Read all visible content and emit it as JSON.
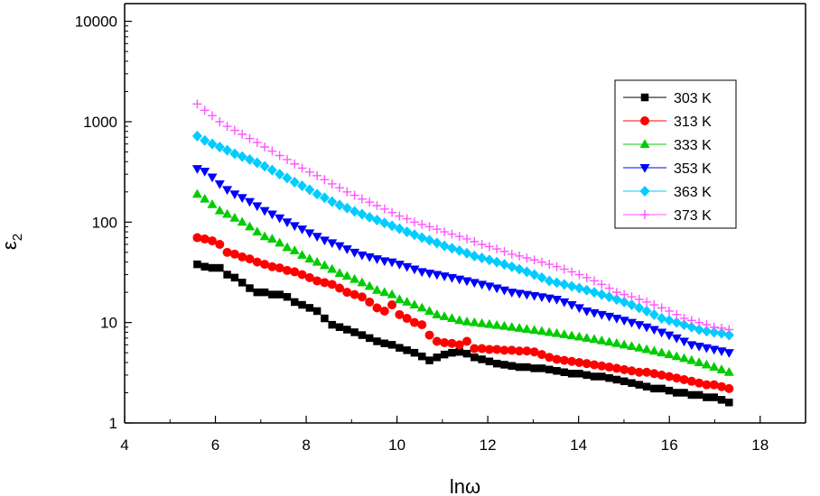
{
  "chart_data": {
    "type": "scatter",
    "title": "",
    "xlabel": "lnω",
    "ylabel": "ε2",
    "ylabel_main": "ε",
    "ylabel_sub": "2",
    "xlim": [
      4,
      19
    ],
    "ylim": [
      1,
      15000
    ],
    "yscale": "log",
    "grid": false,
    "legend_position": "top-right",
    "x_ticks": [
      4,
      6,
      8,
      10,
      12,
      14,
      16,
      18
    ],
    "x_tick_labels": [
      "4",
      "6",
      "8",
      "10",
      "12",
      "14",
      "16",
      "18"
    ],
    "y_ticks": [
      1,
      10,
      100,
      1000,
      10000
    ],
    "y_tick_labels": [
      "1",
      "10",
      "100",
      "1000",
      "10000"
    ],
    "x_start": 5.6,
    "x_step": 0.165,
    "series": [
      {
        "name": "303 K",
        "color": "#000000",
        "marker": "square",
        "values": [
          38,
          36,
          35,
          35,
          30,
          28,
          25,
          22,
          20,
          20,
          19,
          19,
          18,
          16,
          15,
          14,
          13,
          11,
          9.5,
          9,
          8.5,
          8,
          7.5,
          7,
          6.5,
          6.2,
          6,
          5.6,
          5.3,
          5,
          4.6,
          4.2,
          4.5,
          4.8,
          5,
          5.1,
          4.9,
          4.5,
          4.3,
          4.1,
          3.9,
          3.8,
          3.7,
          3.6,
          3.6,
          3.5,
          3.5,
          3.4,
          3.3,
          3.2,
          3.1,
          3.1,
          3,
          2.9,
          2.9,
          2.8,
          2.7,
          2.6,
          2.5,
          2.4,
          2.3,
          2.2,
          2.2,
          2.1,
          2,
          2,
          1.9,
          1.9,
          1.8,
          1.8,
          1.7,
          1.6
        ]
      },
      {
        "name": "313 K",
        "color": "#ff0000",
        "marker": "circle",
        "values": [
          70,
          68,
          65,
          60,
          50,
          48,
          45,
          43,
          40,
          38,
          36,
          35,
          33,
          32,
          30,
          28,
          26,
          25,
          24,
          22,
          20,
          19,
          18,
          16,
          14,
          13,
          15,
          12,
          11,
          10,
          9.5,
          7.5,
          6.5,
          6.3,
          6.2,
          6,
          6.5,
          5.5,
          5.5,
          5.4,
          5.4,
          5.3,
          5.3,
          5.2,
          5.2,
          5.1,
          4.8,
          4.5,
          4.3,
          4.2,
          4.1,
          4,
          3.9,
          3.8,
          3.7,
          3.6,
          3.5,
          3.4,
          3.3,
          3.2,
          3.2,
          3.1,
          3,
          2.9,
          2.8,
          2.7,
          2.6,
          2.5,
          2.4,
          2.4,
          2.3,
          2.2
        ]
      },
      {
        "name": "333 K",
        "color": "#00cc00",
        "marker": "triangle-up",
        "values": [
          190,
          170,
          150,
          130,
          120,
          110,
          100,
          90,
          80,
          72,
          68,
          62,
          56,
          52,
          47,
          43,
          40,
          37,
          34,
          31,
          29,
          27,
          25,
          23,
          21,
          20,
          19,
          17,
          16,
          15,
          14,
          13,
          12,
          11.5,
          11,
          10.5,
          10.2,
          10,
          9.8,
          9.6,
          9.4,
          9.2,
          9,
          8.8,
          8.6,
          8.4,
          8.2,
          8,
          7.8,
          7.6,
          7.4,
          7.2,
          7,
          6.8,
          6.6,
          6.4,
          6.2,
          6,
          5.8,
          5.6,
          5.4,
          5.2,
          5,
          4.8,
          4.6,
          4.4,
          4.2,
          4,
          3.8,
          3.6,
          3.4,
          3.2
        ]
      },
      {
        "name": "353 K",
        "color": "#0000ff",
        "marker": "triangle-down",
        "values": [
          340,
          320,
          280,
          240,
          210,
          190,
          175,
          160,
          145,
          130,
          120,
          110,
          100,
          92,
          85,
          78,
          72,
          66,
          62,
          58,
          54,
          50,
          47,
          45,
          43,
          41,
          40,
          38,
          36,
          34,
          32,
          31,
          30,
          29,
          28,
          27,
          26,
          25,
          24,
          23,
          22,
          21,
          20,
          19.5,
          19,
          18.5,
          18,
          17.5,
          17,
          16,
          15,
          14,
          13,
          12.5,
          12,
          11.5,
          11,
          10.5,
          10,
          9.5,
          9,
          8.5,
          8,
          7.5,
          7,
          6.5,
          6,
          5.8,
          5.6,
          5.4,
          5.2,
          5
        ]
      },
      {
        "name": "363 K",
        "color": "#00ccff",
        "marker": "diamond",
        "values": [
          720,
          650,
          600,
          560,
          520,
          480,
          450,
          420,
          390,
          360,
          330,
          300,
          275,
          250,
          230,
          210,
          190,
          175,
          160,
          148,
          138,
          128,
          120,
          112,
          105,
          98,
          92,
          86,
          80,
          75,
          70,
          66,
          62,
          58,
          55,
          52,
          49,
          46,
          44,
          42,
          40,
          38,
          36,
          34,
          32,
          30,
          28,
          26,
          25,
          24,
          23,
          22,
          21,
          20,
          19,
          18,
          17,
          16,
          15,
          14,
          13,
          12,
          11,
          10.5,
          10,
          9.5,
          9,
          8.5,
          8.2,
          8,
          7.8,
          7.5
        ]
      },
      {
        "name": "373 K",
        "color": "#ff55ff",
        "marker": "plus",
        "values": [
          1500,
          1300,
          1150,
          1000,
          900,
          820,
          750,
          680,
          620,
          560,
          510,
          460,
          420,
          380,
          345,
          315,
          290,
          265,
          240,
          220,
          200,
          185,
          170,
          158,
          146,
          135,
          125,
          115,
          108,
          100,
          95,
          90,
          85,
          80,
          76,
          72,
          68,
          64,
          60,
          57,
          54,
          51,
          48,
          46,
          44,
          42,
          40,
          38,
          36,
          34,
          32,
          30,
          28,
          26,
          24,
          22,
          20,
          19,
          18,
          17,
          16,
          15,
          14,
          13,
          12,
          11,
          10.5,
          10,
          9.5,
          9,
          8.8,
          8.5
        ]
      }
    ]
  }
}
